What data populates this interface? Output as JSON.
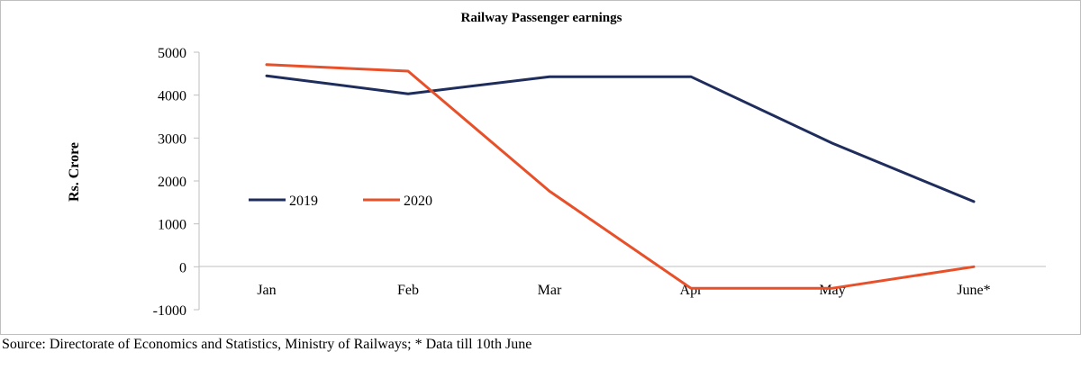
{
  "chart_data": {
    "type": "line",
    "title": "Railway Passenger earnings",
    "xlabel": "",
    "ylabel": "Rs. Crore",
    "categories": [
      "Jan",
      "Feb",
      "Mar",
      "Apr",
      "May",
      "June*"
    ],
    "ylim": [
      -1000,
      5000
    ],
    "yticks": [
      5000,
      4000,
      3000,
      2000,
      1000,
      0,
      -1000
    ],
    "grid": false,
    "legend": "left",
    "series": [
      {
        "name": "2019",
        "color": "#1f2d5c",
        "values": [
          4450,
          4030,
          4430,
          4430,
          2880,
          1520
        ]
      },
      {
        "name": "2020",
        "color": "#e8502a",
        "values": [
          4710,
          4560,
          1760,
          -500,
          -500,
          0
        ]
      }
    ]
  },
  "source_note": "Source: Directorate of Economics and Statistics, Ministry of Railways; * Data till 10th June"
}
